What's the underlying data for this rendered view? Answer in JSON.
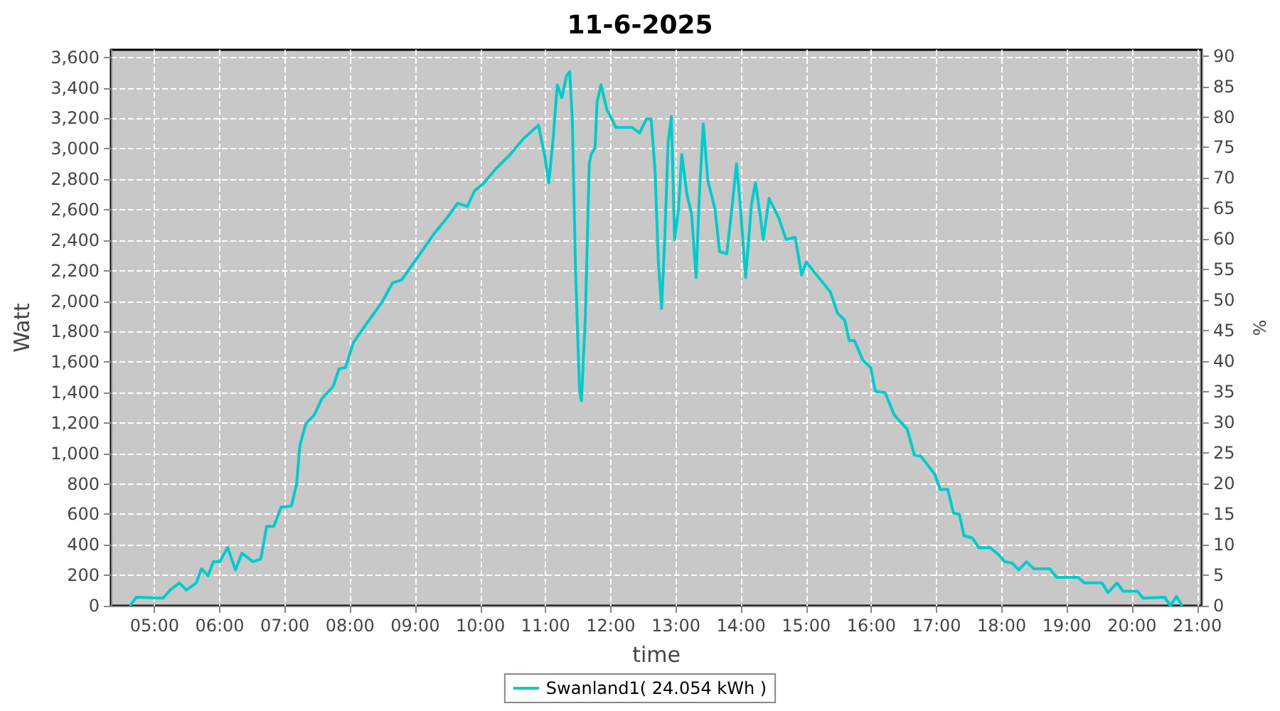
{
  "chart_data": {
    "type": "line",
    "title": "11-6-2025",
    "xlabel": "time",
    "ylabel": "Watt",
    "y2label": "%",
    "xlim": [
      4.33,
      21.07
    ],
    "xticks": [
      {
        "value": 5,
        "label": "05:00"
      },
      {
        "value": 6,
        "label": "06:00"
      },
      {
        "value": 7,
        "label": "07:00"
      },
      {
        "value": 8,
        "label": "08:00"
      },
      {
        "value": 9,
        "label": "09:00"
      },
      {
        "value": 10,
        "label": "10:00"
      },
      {
        "value": 11,
        "label": "11:00"
      },
      {
        "value": 12,
        "label": "12:00"
      },
      {
        "value": 13,
        "label": "13:00"
      },
      {
        "value": 14,
        "label": "14:00"
      },
      {
        "value": 15,
        "label": "15:00"
      },
      {
        "value": 16,
        "label": "16:00"
      },
      {
        "value": 17,
        "label": "17:00"
      },
      {
        "value": 18,
        "label": "18:00"
      },
      {
        "value": 19,
        "label": "19:00"
      },
      {
        "value": 20,
        "label": "20:00"
      },
      {
        "value": 21,
        "label": "21:00"
      }
    ],
    "ylim": [
      0,
      3650
    ],
    "yticks": [
      0,
      200,
      400,
      600,
      800,
      {
        "value": 1000,
        "label": "1,000"
      },
      {
        "value": 1200,
        "label": "1,200"
      },
      {
        "value": 1400,
        "label": "1,400"
      },
      {
        "value": 1600,
        "label": "1,600"
      },
      {
        "value": 1800,
        "label": "1,800"
      },
      {
        "value": 2000,
        "label": "2,000"
      },
      {
        "value": 2200,
        "label": "2,200"
      },
      {
        "value": 2400,
        "label": "2,400"
      },
      {
        "value": 2600,
        "label": "2,600"
      },
      {
        "value": 2800,
        "label": "2,800"
      },
      {
        "value": 3000,
        "label": "3,000"
      },
      {
        "value": 3200,
        "label": "3,200"
      },
      {
        "value": 3400,
        "label": "3,400"
      },
      {
        "value": 3600,
        "label": "3,600"
      }
    ],
    "y2lim": [
      0,
      91
    ],
    "y2ticks": [
      0,
      5,
      10,
      15,
      20,
      25,
      30,
      35,
      40,
      45,
      50,
      55,
      60,
      65,
      70,
      75,
      80,
      85,
      90
    ],
    "grid": true,
    "legend": "bottom",
    "marker": "none",
    "line_style": "solid",
    "series": [
      {
        "name": "Swanland1( 24.054 kWh )",
        "color": "#00cccc",
        "x": [
          4.62,
          4.72,
          5.13,
          5.24,
          5.38,
          5.49,
          5.64,
          5.72,
          5.82,
          5.9,
          6.0,
          6.12,
          6.24,
          6.34,
          6.51,
          6.63,
          6.72,
          6.83,
          6.94,
          7.1,
          7.18,
          7.23,
          7.32,
          7.45,
          7.57,
          7.74,
          7.83,
          7.93,
          8.05,
          8.25,
          8.5,
          8.65,
          8.79,
          9.15,
          9.29,
          9.47,
          9.65,
          9.8,
          9.91,
          10.05,
          10.23,
          10.45,
          10.65,
          10.89,
          10.99,
          11.05,
          11.12,
          11.18,
          11.25,
          11.32,
          11.37,
          11.41,
          11.46,
          11.52,
          11.55,
          11.61,
          11.67,
          11.7,
          11.76,
          11.79,
          11.85,
          11.94,
          12.08,
          12.33,
          12.44,
          12.55,
          12.62,
          12.68,
          12.73,
          12.78,
          12.83,
          12.88,
          12.93,
          12.98,
          13.04,
          13.09,
          13.17,
          13.24,
          13.31,
          13.36,
          13.42,
          13.49,
          13.6,
          13.67,
          13.78,
          13.85,
          13.93,
          13.98,
          14.07,
          14.16,
          14.22,
          14.29,
          14.34,
          14.43,
          14.58,
          14.69,
          14.83,
          14.93,
          15.0,
          15.16,
          15.37,
          15.48,
          15.59,
          15.66,
          15.74,
          15.87,
          15.99,
          16.06,
          16.21,
          16.35,
          16.55,
          16.66,
          16.76,
          16.97,
          17.06,
          17.17,
          17.26,
          17.35,
          17.42,
          17.55,
          17.65,
          17.82,
          17.95,
          18.05,
          18.16,
          18.26,
          18.38,
          18.49,
          18.74,
          18.84,
          19.17,
          19.27,
          19.54,
          19.63,
          19.77,
          19.86,
          20.08,
          20.17,
          20.5,
          20.59,
          20.68,
          20.77
        ],
        "values": [
          0,
          56,
          50,
          103,
          150,
          103,
          150,
          243,
          196,
          289,
          289,
          382,
          236,
          345,
          289,
          308,
          522,
          522,
          646,
          656,
          802,
          1054,
          1194,
          1253,
          1362,
          1439,
          1555,
          1564,
          1728,
          1850,
          2000,
          2120,
          2139,
          2357,
          2444,
          2537,
          2642,
          2621,
          2724,
          2773,
          2866,
          2959,
          3062,
          3155,
          2947,
          2776,
          3087,
          3420,
          3336,
          3476,
          3507,
          3196,
          2201,
          1424,
          1346,
          1891,
          2901,
          2963,
          3010,
          3305,
          3420,
          3258,
          3140,
          3140,
          3103,
          3196,
          3196,
          2854,
          2264,
          1952,
          2419,
          3041,
          3211,
          2404,
          2605,
          2963,
          2698,
          2574,
          2155,
          2698,
          3165,
          2792,
          2605,
          2325,
          2310,
          2574,
          2901,
          2668,
          2155,
          2637,
          2777,
          2574,
          2404,
          2674,
          2544,
          2404,
          2419,
          2171,
          2257,
          2171,
          2061,
          1921,
          1875,
          1741,
          1741,
          1611,
          1564,
          1408,
          1399,
          1253,
          1159,
          989,
          982,
          865,
          762,
          765,
          609,
          600,
          460,
          445,
          380,
          382,
          336,
          289,
          280,
          236,
          289,
          243,
          243,
          187,
          187,
          150,
          150,
          87,
          150,
          96,
          96,
          50,
          56,
          0,
          62,
          0
        ]
      }
    ]
  }
}
